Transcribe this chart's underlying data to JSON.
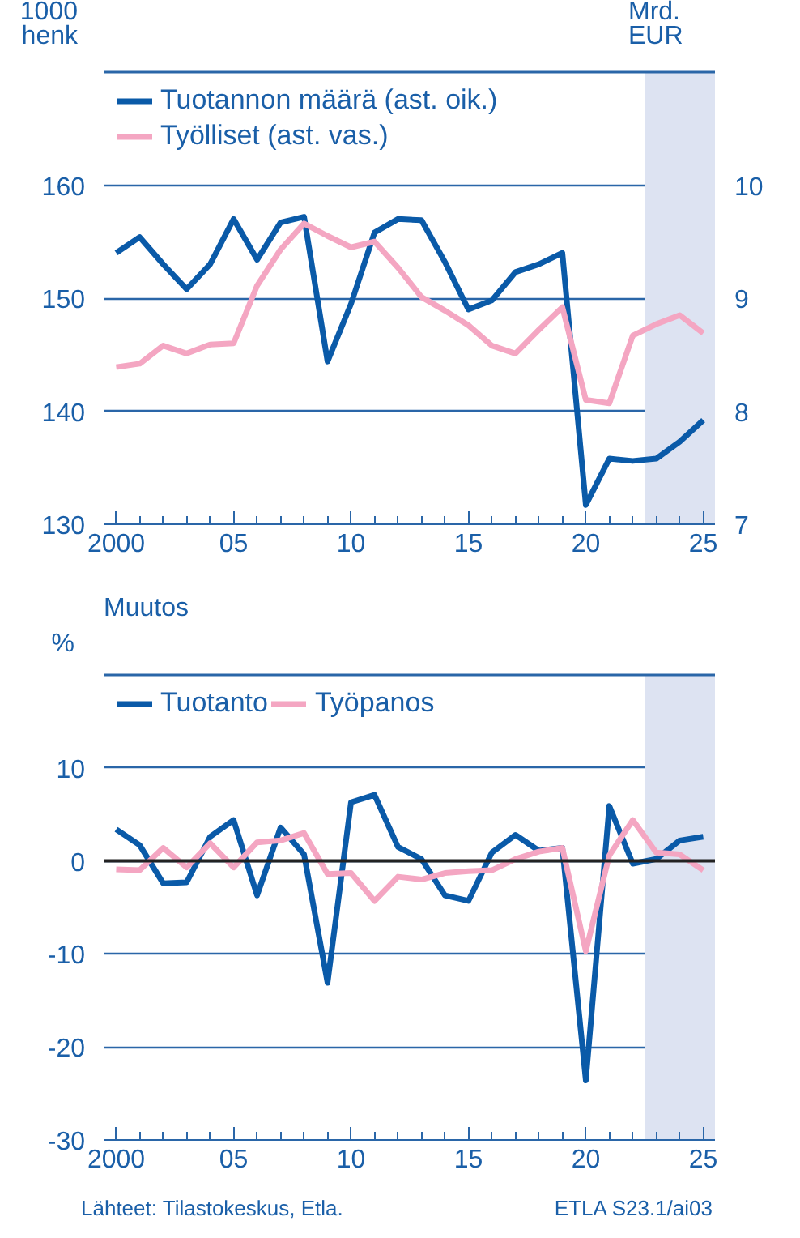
{
  "chart_data": [
    {
      "type": "line",
      "ylabel": "1000 henk",
      "y2label": "Mrd. EUR",
      "x": [
        2000,
        2001,
        2002,
        2003,
        2004,
        2005,
        2006,
        2007,
        2008,
        2009,
        2010,
        2011,
        2012,
        2013,
        2014,
        2015,
        2016,
        2017,
        2018,
        2019,
        2020,
        2021,
        2022,
        2023,
        2024,
        2025
      ],
      "series": [
        {
          "name": "Tuotannon määrä (ast. oik.)",
          "color": "#0a5aa8",
          "axis": "y2",
          "values": [
            9.4,
            9.54,
            9.3,
            9.08,
            9.3,
            9.7,
            9.34,
            9.67,
            9.72,
            8.44,
            8.95,
            9.58,
            9.7,
            9.69,
            9.32,
            8.9,
            8.98,
            9.23,
            9.3,
            9.4,
            7.17,
            7.58,
            7.56,
            7.58,
            7.73,
            7.92
          ]
        },
        {
          "name": "Työlliset (ast. vas.)",
          "color": "#f4a6c2",
          "values": [
            143.9,
            144.2,
            145.8,
            145.1,
            145.9,
            146.0,
            151.1,
            154.3,
            156.6,
            155.5,
            154.5,
            155.0,
            152.7,
            150.1,
            148.9,
            147.6,
            145.8,
            145.1,
            147.2,
            149.2,
            141.0,
            140.7,
            146.7,
            147.7,
            148.5,
            146.9
          ]
        }
      ],
      "xlim": [
        1999.5,
        2025.5
      ],
      "xticks": [
        {
          "value": 2000,
          "label": "2000"
        },
        {
          "value": 2001,
          "label": null
        },
        {
          "value": 2002,
          "label": null
        },
        {
          "value": 2003,
          "label": null
        },
        {
          "value": 2004,
          "label": null
        },
        {
          "value": 2005,
          "label": "05"
        },
        {
          "value": 2006,
          "label": null
        },
        {
          "value": 2007,
          "label": null
        },
        {
          "value": 2008,
          "label": null
        },
        {
          "value": 2009,
          "label": null
        },
        {
          "value": 2010,
          "label": "10"
        },
        {
          "value": 2011,
          "label": null
        },
        {
          "value": 2012,
          "label": null
        },
        {
          "value": 2013,
          "label": null
        },
        {
          "value": 2014,
          "label": null
        },
        {
          "value": 2015,
          "label": "15"
        },
        {
          "value": 2016,
          "label": null
        },
        {
          "value": 2017,
          "label": null
        },
        {
          "value": 2018,
          "label": null
        },
        {
          "value": 2019,
          "label": null
        },
        {
          "value": 2020,
          "label": "20"
        },
        {
          "value": 2021,
          "label": null
        },
        {
          "value": 2022,
          "label": null
        },
        {
          "value": 2023,
          "label": null
        },
        {
          "value": 2024,
          "label": null
        },
        {
          "value": 2025,
          "label": "25"
        }
      ],
      "ylim": [
        130,
        170
      ],
      "yticks": [
        130,
        140,
        150,
        160
      ],
      "y2lim": [
        7,
        11
      ],
      "y2ticks": [
        7,
        8,
        9,
        10
      ],
      "bands": [
        {
          "axis": "x",
          "from": 2022.5,
          "to": 2025.5,
          "color": "#dde3f2"
        }
      ],
      "grid": "y",
      "legend": "top left",
      "line_style": "solid",
      "marker": "none"
    },
    {
      "type": "line",
      "title": "Muutos",
      "ylabel": "%",
      "x": [
        2000,
        2001,
        2002,
        2003,
        2004,
        2005,
        2006,
        2007,
        2008,
        2009,
        2010,
        2011,
        2012,
        2013,
        2014,
        2015,
        2016,
        2017,
        2018,
        2019,
        2020,
        2021,
        2022,
        2023,
        2024,
        2025
      ],
      "series": [
        {
          "name": "Tuotanto",
          "color": "#0a5aa8",
          "values": [
            3.4,
            1.7,
            -2.4,
            -2.3,
            2.6,
            4.4,
            -3.7,
            3.6,
            0.7,
            -13.1,
            6.3,
            7.1,
            1.5,
            0.2,
            -3.7,
            -4.3,
            0.9,
            2.8,
            1.1,
            1.4,
            -23.6,
            5.9,
            -0.3,
            0.2,
            2.2,
            2.6
          ]
        },
        {
          "name": "Työpanos",
          "color": "#f4a6c2",
          "values": [
            -0.9,
            -1.0,
            1.4,
            -0.7,
            1.9,
            -0.7,
            2.0,
            2.2,
            3.0,
            -1.4,
            -1.3,
            -4.3,
            -1.7,
            -2.0,
            -1.3,
            -1.1,
            -1.0,
            0.2,
            1.0,
            1.4,
            -9.7,
            0.6,
            4.4,
            0.9,
            0.7,
            -1.0
          ]
        }
      ],
      "xlim": [
        1999.5,
        2025.5
      ],
      "xticks": [
        {
          "value": 2000,
          "label": "2000"
        },
        {
          "value": 2001,
          "label": null
        },
        {
          "value": 2002,
          "label": null
        },
        {
          "value": 2003,
          "label": null
        },
        {
          "value": 2004,
          "label": null
        },
        {
          "value": 2005,
          "label": "05"
        },
        {
          "value": 2006,
          "label": null
        },
        {
          "value": 2007,
          "label": null
        },
        {
          "value": 2008,
          "label": null
        },
        {
          "value": 2009,
          "label": null
        },
        {
          "value": 2010,
          "label": "10"
        },
        {
          "value": 2011,
          "label": null
        },
        {
          "value": 2012,
          "label": null
        },
        {
          "value": 2013,
          "label": null
        },
        {
          "value": 2014,
          "label": null
        },
        {
          "value": 2015,
          "label": "15"
        },
        {
          "value": 2016,
          "label": null
        },
        {
          "value": 2017,
          "label": null
        },
        {
          "value": 2018,
          "label": null
        },
        {
          "value": 2019,
          "label": null
        },
        {
          "value": 2020,
          "label": "20"
        },
        {
          "value": 2021,
          "label": null
        },
        {
          "value": 2022,
          "label": null
        },
        {
          "value": 2023,
          "label": null
        },
        {
          "value": 2024,
          "label": null
        },
        {
          "value": 2025,
          "label": "25"
        }
      ],
      "ylim": [
        -30,
        20
      ],
      "yticks": [
        -30,
        -20,
        -10,
        0,
        10
      ],
      "ref_lines": [
        {
          "axis": "y",
          "value": 0,
          "color": "#222222"
        }
      ],
      "bands": [
        {
          "axis": "x",
          "from": 2022.5,
          "to": 2025.5,
          "color": "#dde3f2"
        }
      ],
      "grid": "y",
      "legend": "top left",
      "line_style": "solid",
      "marker": "none",
      "annotations": [
        "Lähteet:  Tilastokeskus, Etla.",
        "ETLA S23.1/ai03"
      ]
    }
  ]
}
